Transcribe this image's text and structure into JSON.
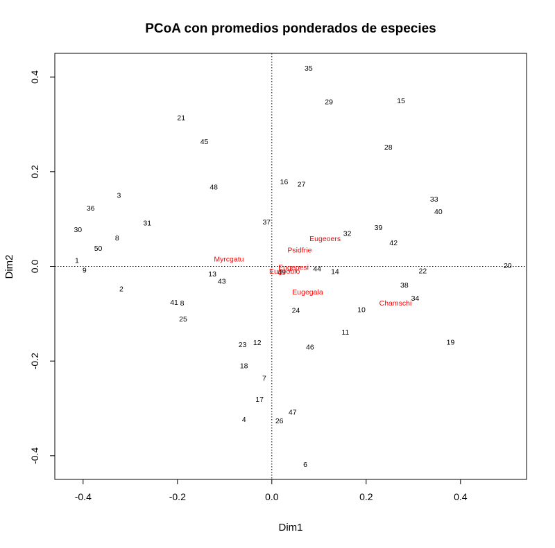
{
  "chart_data": {
    "type": "scatter",
    "title": "PCoA con promedios ponderados de especies",
    "xlabel": "Dim1",
    "ylabel": "Dim2",
    "xlim": [
      -0.46,
      0.54
    ],
    "ylim": [
      -0.45,
      0.45
    ],
    "x_ticks": [
      -0.4,
      -0.2,
      0.0,
      0.2,
      0.4
    ],
    "x_tick_labels": [
      "-0.4",
      "-0.2",
      "0.0",
      "0.2",
      "0.4"
    ],
    "y_ticks": [
      -0.4,
      -0.2,
      0.0,
      0.2,
      0.4
    ],
    "y_tick_labels": [
      "-0.4",
      "-0.2",
      "0.0",
      "0.2",
      "0.4"
    ],
    "reference_lines": {
      "x": 0.0,
      "y": 0.0,
      "style": "dotted"
    },
    "grid": false,
    "sites": {
      "color": "#000000",
      "points": [
        {
          "label": "1",
          "x": -0.413,
          "y": 0.012
        },
        {
          "label": "2",
          "x": -0.319,
          "y": -0.048
        },
        {
          "label": "3",
          "x": -0.324,
          "y": 0.149
        },
        {
          "label": "4",
          "x": -0.059,
          "y": -0.324
        },
        {
          "label": "6",
          "x": 0.071,
          "y": -0.419
        },
        {
          "label": "7",
          "x": -0.016,
          "y": -0.237
        },
        {
          "label": "8",
          "x": -0.328,
          "y": 0.059
        },
        {
          "label": "9",
          "x": -0.397,
          "y": -0.009
        },
        {
          "label": "10",
          "x": 0.19,
          "y": -0.092
        },
        {
          "label": "11",
          "x": 0.156,
          "y": -0.14
        },
        {
          "label": "12",
          "x": -0.031,
          "y": -0.162
        },
        {
          "label": "13",
          "x": -0.126,
          "y": -0.017
        },
        {
          "label": "14",
          "x": 0.134,
          "y": -0.012
        },
        {
          "label": "15",
          "x": 0.274,
          "y": 0.349
        },
        {
          "label": "16",
          "x": 0.026,
          "y": 0.178
        },
        {
          "label": "17",
          "x": -0.026,
          "y": -0.282
        },
        {
          "label": "18",
          "x": -0.059,
          "y": -0.211
        },
        {
          "label": "19",
          "x": 0.379,
          "y": -0.161
        },
        {
          "label": "20",
          "x": 0.5,
          "y": 0.001
        },
        {
          "label": "21",
          "x": -0.192,
          "y": 0.313
        },
        {
          "label": "22",
          "x": 0.32,
          "y": -0.01
        },
        {
          "label": "23",
          "x": -0.062,
          "y": -0.166
        },
        {
          "label": "24",
          "x": 0.051,
          "y": -0.094
        },
        {
          "label": "25",
          "x": -0.188,
          "y": -0.112
        },
        {
          "label": "26",
          "x": 0.016,
          "y": -0.327
        },
        {
          "label": "27",
          "x": 0.063,
          "y": 0.173
        },
        {
          "label": "28",
          "x": 0.247,
          "y": 0.251
        },
        {
          "label": "29",
          "x": 0.121,
          "y": 0.347
        },
        {
          "label": "30",
          "x": -0.411,
          "y": 0.077
        },
        {
          "label": "31",
          "x": -0.264,
          "y": 0.091
        },
        {
          "label": "32",
          "x": 0.16,
          "y": 0.069
        },
        {
          "label": "33",
          "x": 0.344,
          "y": 0.141
        },
        {
          "label": "34",
          "x": 0.304,
          "y": -0.068
        },
        {
          "label": "35",
          "x": 0.078,
          "y": 0.418
        },
        {
          "label": "36",
          "x": -0.384,
          "y": 0.122
        },
        {
          "label": "37",
          "x": -0.011,
          "y": 0.093
        },
        {
          "label": "38",
          "x": 0.281,
          "y": -0.04
        },
        {
          "label": "39",
          "x": 0.226,
          "y": 0.081
        },
        {
          "label": "40",
          "x": 0.353,
          "y": 0.115
        },
        {
          "label": "41",
          "x": -0.207,
          "y": -0.077
        },
        {
          "label": "42",
          "x": 0.258,
          "y": 0.049
        },
        {
          "label": "43",
          "x": -0.106,
          "y": -0.032
        },
        {
          "label": "44",
          "x": 0.096,
          "y": -0.006
        },
        {
          "label": "45",
          "x": -0.143,
          "y": 0.263
        },
        {
          "label": "46",
          "x": 0.081,
          "y": -0.171
        },
        {
          "label": "47",
          "x": 0.044,
          "y": -0.309
        },
        {
          "label": "48",
          "x": -0.123,
          "y": 0.167
        },
        {
          "label": "49",
          "x": 0.021,
          "y": -0.013
        },
        {
          "label": "50",
          "x": -0.368,
          "y": 0.037
        },
        {
          "label": "8",
          "x": -0.19,
          "y": -0.078
        }
      ]
    },
    "species": {
      "color": "#ff0000",
      "points": [
        {
          "label": "Myrcgatu",
          "x": -0.091,
          "y": 0.015
        },
        {
          "label": "Eugeoers",
          "x": 0.113,
          "y": 0.058
        },
        {
          "label": "Psidfrie",
          "x": 0.059,
          "y": 0.034
        },
        {
          "label": "Eugepesi",
          "x": 0.046,
          "y": -0.003
        },
        {
          "label": "Eugeoblo",
          "x": 0.027,
          "y": -0.011
        },
        {
          "label": "Eugegala",
          "x": 0.076,
          "y": -0.055
        },
        {
          "label": "Chamschi",
          "x": 0.262,
          "y": -0.078
        }
      ]
    }
  }
}
